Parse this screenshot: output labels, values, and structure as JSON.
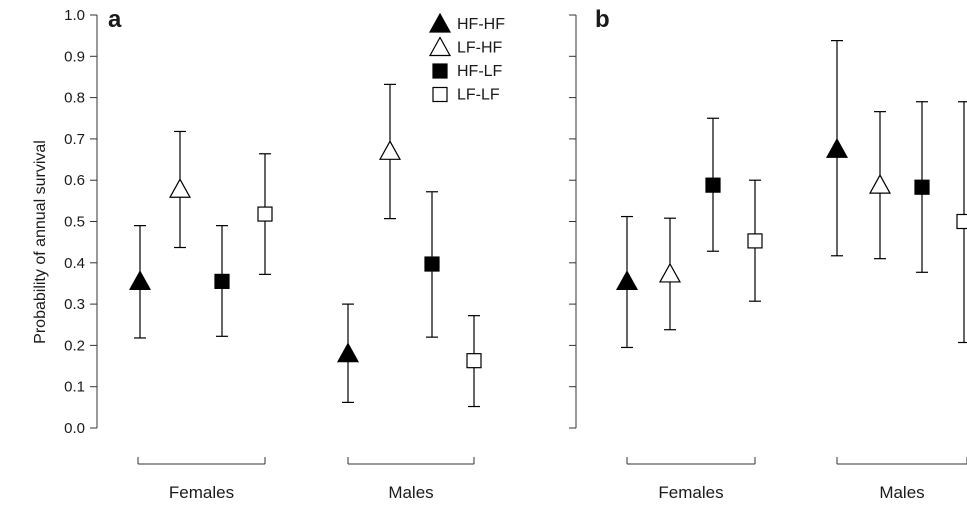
{
  "chart_data": [
    {
      "type": "scatter",
      "panel_label": "a",
      "ylabel": "Probability of annual survival",
      "ylim": [
        0,
        1
      ],
      "yticks": [
        "0.0",
        "0.1",
        "0.2",
        "0.3",
        "0.4",
        "0.5",
        "0.6",
        "0.7",
        "0.8",
        "0.9",
        "1.0"
      ],
      "groups": [
        "Females",
        "Males"
      ],
      "series": [
        {
          "name": "HF-HF",
          "marker": "triangle-filled",
          "values": [
            0.355,
            0.18
          ],
          "lower": [
            0.218,
            0.062
          ],
          "upper": [
            0.49,
            0.3
          ]
        },
        {
          "name": "LF-HF",
          "marker": "triangle-open",
          "values": [
            0.578,
            0.67
          ],
          "lower": [
            0.437,
            0.507
          ],
          "upper": [
            0.718,
            0.832
          ]
        },
        {
          "name": "HF-LF",
          "marker": "square-filled",
          "values": [
            0.355,
            0.397
          ],
          "lower": [
            0.222,
            0.22
          ],
          "upper": [
            0.49,
            0.572
          ]
        },
        {
          "name": "LF-LF",
          "marker": "square-open",
          "values": [
            0.518,
            0.163
          ],
          "lower": [
            0.372,
            0.052
          ],
          "upper": [
            0.664,
            0.272
          ]
        }
      ]
    },
    {
      "type": "scatter",
      "panel_label": "b",
      "ylim": [
        0,
        1
      ],
      "groups": [
        "Females",
        "Males"
      ],
      "series": [
        {
          "name": "HF-HF",
          "marker": "triangle-filled",
          "values": [
            0.355,
            0.675
          ],
          "lower": [
            0.195,
            0.417
          ],
          "upper": [
            0.512,
            0.938
          ]
        },
        {
          "name": "LF-HF",
          "marker": "triangle-open",
          "values": [
            0.373,
            0.588
          ],
          "lower": [
            0.238,
            0.41
          ],
          "upper": [
            0.508,
            0.766
          ]
        },
        {
          "name": "HF-LF",
          "marker": "square-filled",
          "values": [
            0.588,
            0.583
          ],
          "lower": [
            0.428,
            0.377
          ],
          "upper": [
            0.75,
            0.79
          ]
        },
        {
          "name": "LF-LF",
          "marker": "square-open",
          "values": [
            0.453,
            0.5
          ],
          "lower": [
            0.307,
            0.207
          ],
          "upper": [
            0.6,
            0.79
          ]
        }
      ]
    }
  ],
  "legend": {
    "placement": "top-right of panel a",
    "entries": [
      "HF-HF",
      "LF-HF",
      "HF-LF",
      "LF-LF"
    ]
  },
  "colors": {
    "mark": "#000000",
    "axis": "#333333",
    "background": "#ffffff"
  }
}
